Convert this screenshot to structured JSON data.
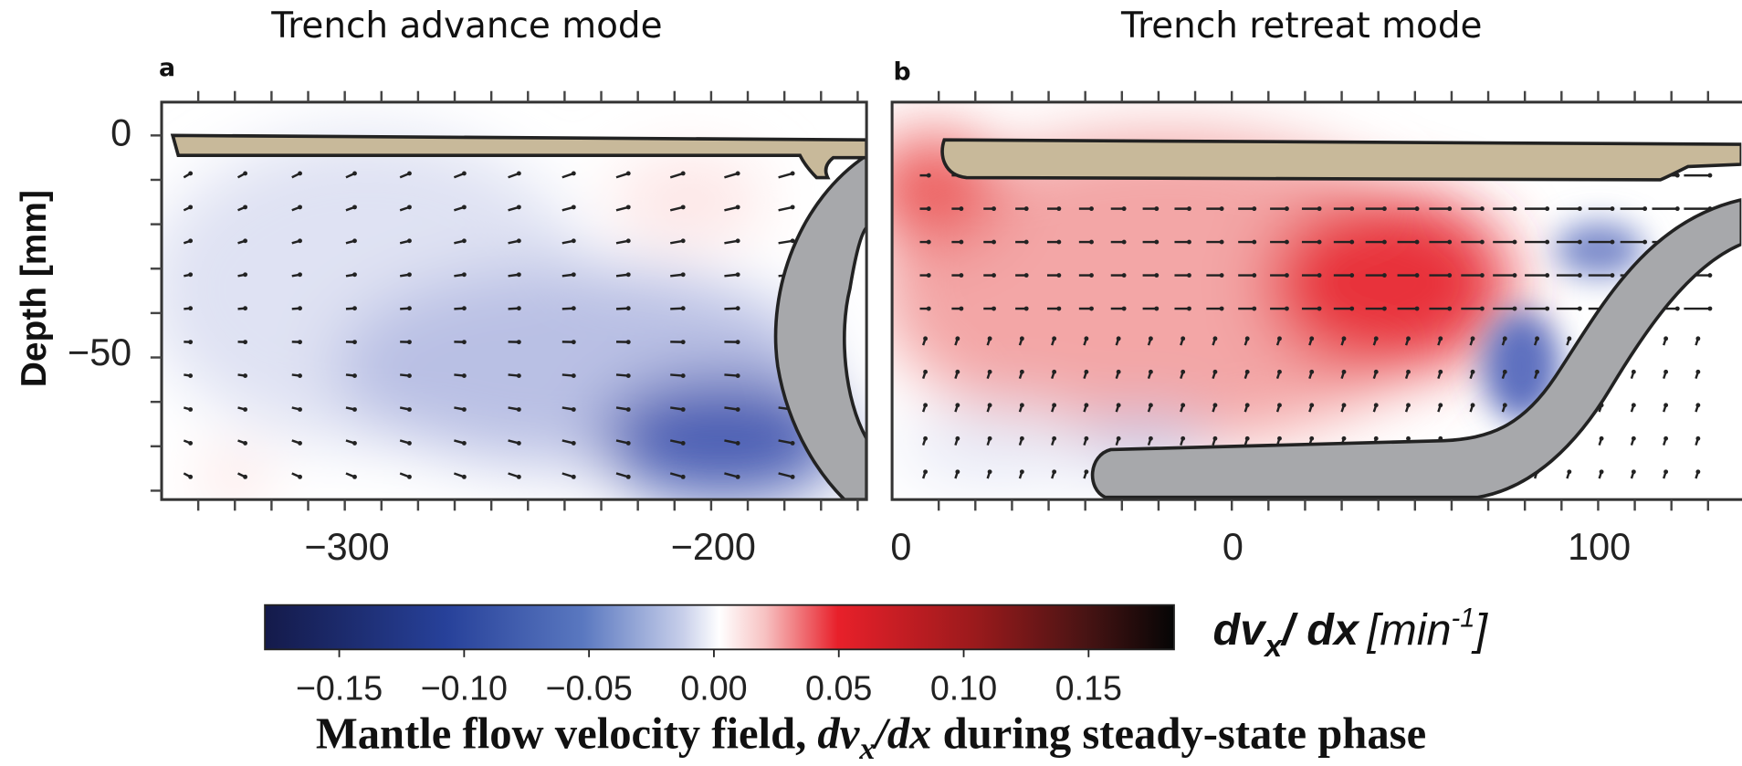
{
  "panels": [
    {
      "title": "Trench advance mode",
      "letter": "a",
      "y_label": "Depth [mm]",
      "y_ticks": [
        "0",
        "−50"
      ],
      "x_ticks": [
        "−300",
        "−200"
      ]
    },
    {
      "title": "Trench retreat mode",
      "letter": "b",
      "x_ticks": [
        "0",
        "0",
        "100"
      ]
    }
  ],
  "colorbar": {
    "label": [
      "dv",
      "x",
      "/ dx",
      "[min",
      "-1",
      "]"
    ],
    "ticks": [
      "−0.15",
      "−0.10",
      "−0.05",
      "0.00",
      "0.05",
      "0.10",
      "0.15"
    ]
  },
  "caption": [
    "Mantle flow velocity field, ",
    "dv",
    "x",
    "/dx",
    " during steady-state phase"
  ]
}
